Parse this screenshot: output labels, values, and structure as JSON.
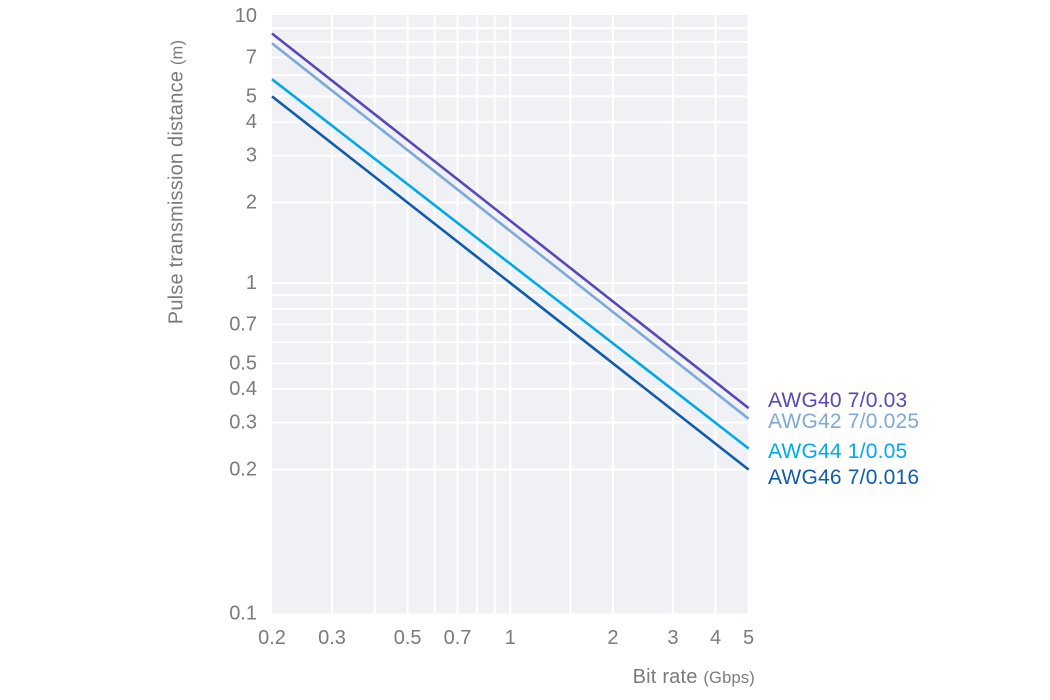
{
  "chart_data": {
    "type": "line",
    "scale": "log-log",
    "title": "",
    "xlabel": "Bit rate",
    "xlabel_unit": "(Gbps)",
    "ylabel": "Pulse transmission distance",
    "ylabel_unit": "(m)",
    "xlim": [
      0.2,
      5
    ],
    "ylim": [
      0.1,
      10
    ],
    "grid": "on",
    "legend_position": "right-outside",
    "x_ticks": [
      "0.2",
      "0.3",
      "0.5",
      "0.7",
      "1",
      "2",
      "3",
      "4",
      "5"
    ],
    "y_ticks": [
      "10",
      "7",
      "5",
      "4",
      "3",
      "2",
      "1",
      "0.7",
      "0.5",
      "0.4",
      "0.3",
      "0.2",
      "0.1"
    ],
    "x_gridlines": [
      0.3,
      0.4,
      0.5,
      0.6,
      0.7,
      0.8,
      0.9,
      1,
      1.5,
      2,
      3,
      4,
      5
    ],
    "y_gridlines": [
      9,
      8,
      7,
      6,
      5,
      4,
      3,
      2,
      1,
      0.9,
      0.8,
      0.7,
      0.6,
      0.5,
      0.4,
      0.3,
      0.2
    ],
    "series": [
      {
        "name": "AWG40 7/0.03",
        "color": "#5847b6",
        "x": [
          0.2,
          5
        ],
        "y": [
          8.6,
          0.34
        ]
      },
      {
        "name": "AWG42 7/0.025",
        "color": "#7ea9d9",
        "x": [
          0.2,
          5
        ],
        "y": [
          7.9,
          0.31
        ]
      },
      {
        "name": "AWG44 1/0.05",
        "color": "#00a9e8",
        "x": [
          0.2,
          5
        ],
        "y": [
          5.8,
          0.24
        ]
      },
      {
        "name": "AWG46 7/0.016",
        "color": "#0f5cac",
        "x": [
          0.2,
          5
        ],
        "y": [
          5.0,
          0.2
        ]
      }
    ],
    "colors": {
      "plot_background": "#f0f1f4",
      "gridline": "#ffffff",
      "tick_label": "#7b7b7b",
      "axis_title": "#7b7b7b"
    }
  }
}
